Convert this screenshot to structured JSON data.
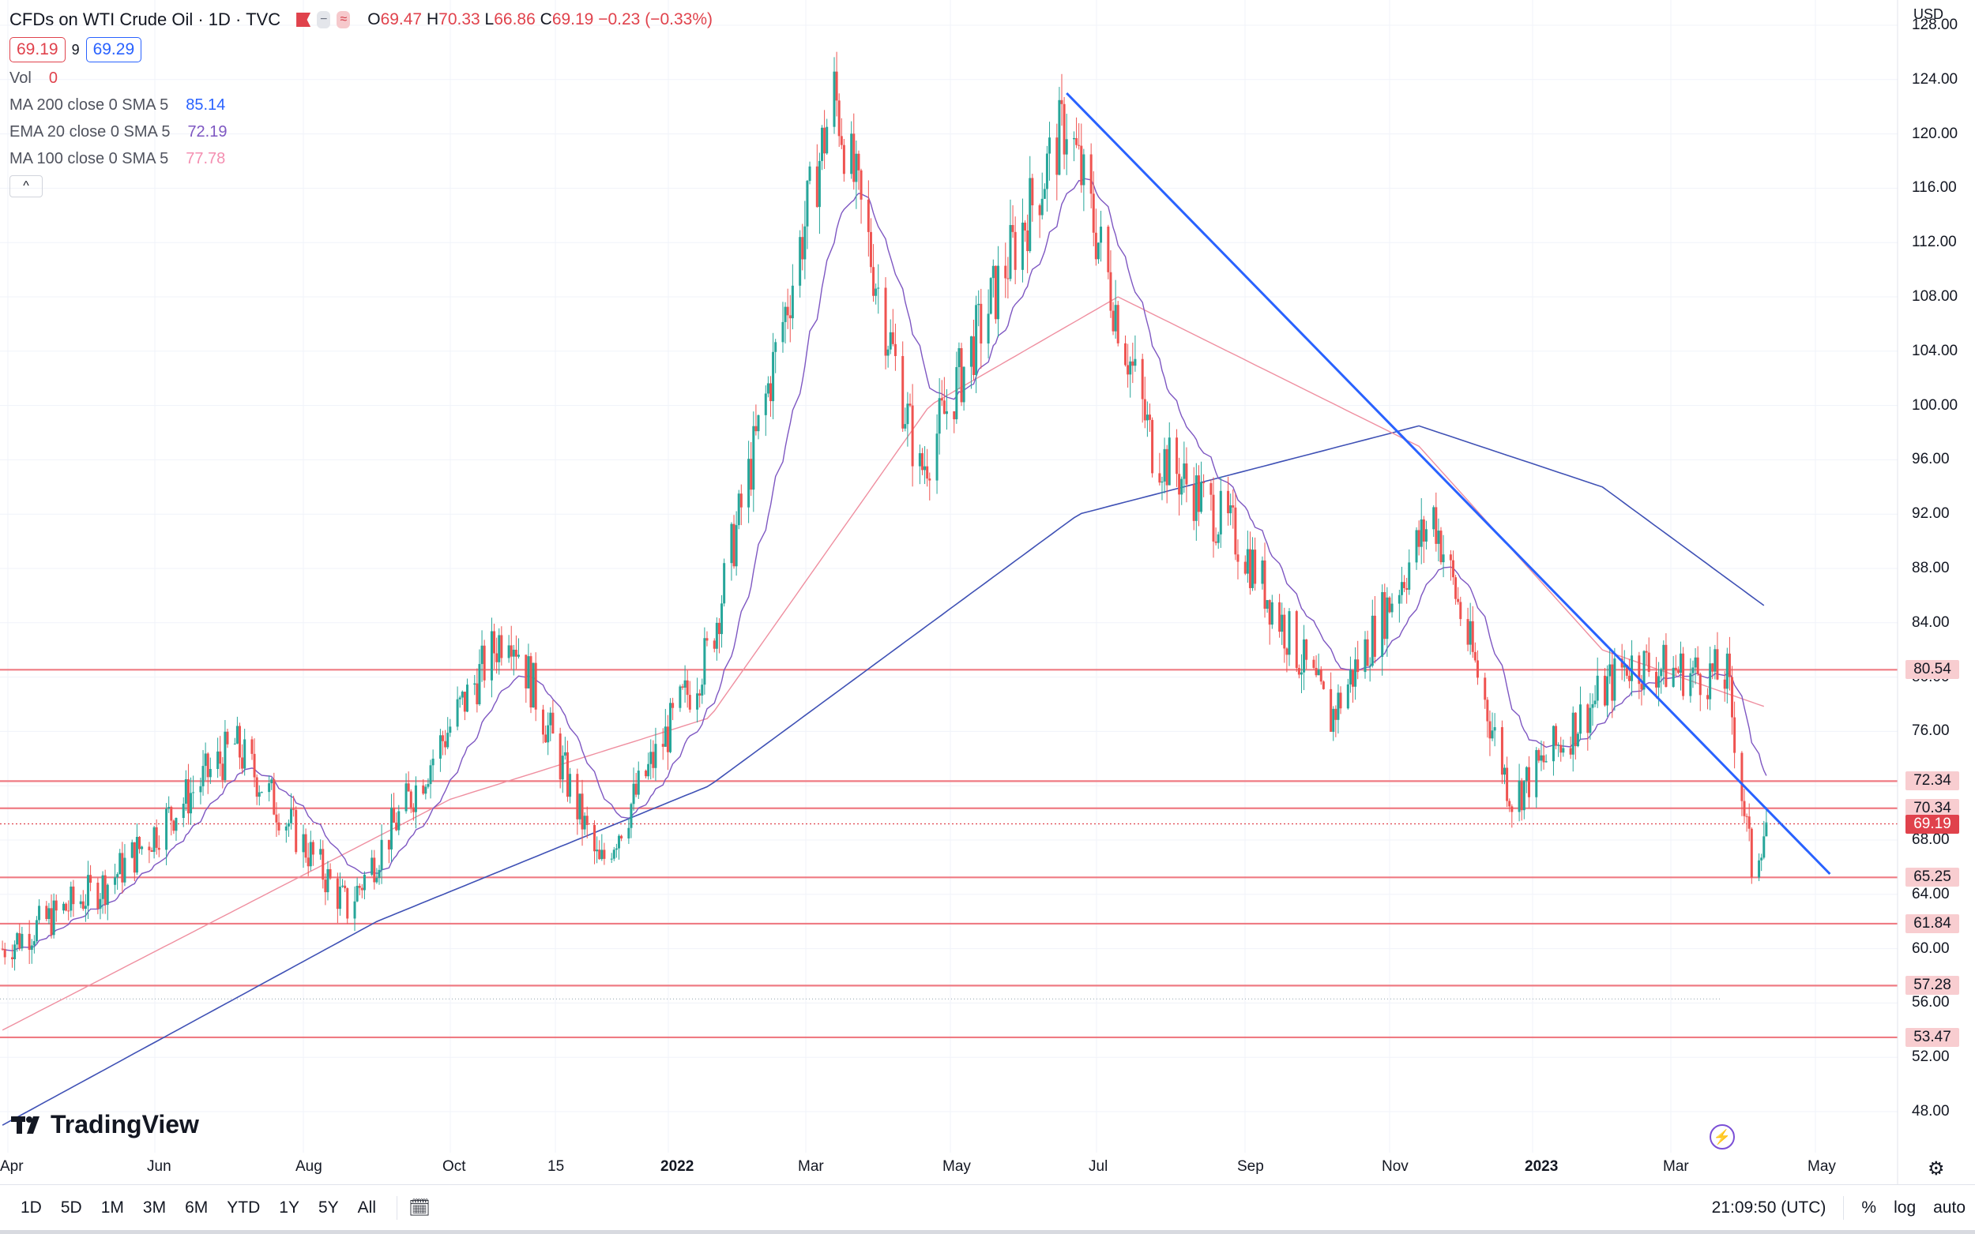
{
  "header": {
    "symbol_title": "CFDs on WTI Crude Oil · 1D · TVC",
    "ohlc": {
      "o_label": "O",
      "o": "69.47",
      "h_label": "H",
      "h": "70.33",
      "l_label": "L",
      "l": "66.86",
      "c_label": "C",
      "c": "69.19",
      "change": "−0.23 (−0.33%)"
    },
    "bid": "69.19",
    "spread": "9",
    "ask": "69.29",
    "vol_label": "Vol",
    "vol_value": "0",
    "indicators": [
      {
        "label": "MA 200 close 0 SMA 5",
        "value": "85.14",
        "color": "#2962ff"
      },
      {
        "label": "EMA 20 close 0 SMA 5",
        "value": "72.19",
        "color": "#7e57c2"
      },
      {
        "label": "MA 100 close 0 SMA 5",
        "value": "77.78",
        "color": "#f48fb1"
      }
    ],
    "collapse_glyph": "^"
  },
  "price_axis": {
    "currency": "USD",
    "ticks": [
      "128.00",
      "124.00",
      "120.00",
      "116.00",
      "112.00",
      "108.00",
      "104.00",
      "100.00",
      "96.00",
      "92.00",
      "88.00",
      "84.00",
      "80.00",
      "76.00",
      "72.00",
      "68.00",
      "64.00",
      "60.00",
      "56.00",
      "52.00",
      "48.00"
    ]
  },
  "time_axis": {
    "labels": [
      "Apr",
      "Jun",
      "Aug",
      "Oct",
      "15",
      "2022",
      "Mar",
      "May",
      "Jul",
      "Sep",
      "Nov",
      "2023",
      "Mar",
      "May"
    ]
  },
  "horizontal_levels": [
    {
      "value": "80.54",
      "style": "red-tag"
    },
    {
      "value": "72.34",
      "style": "red-tag"
    },
    {
      "value": "70.34",
      "style": "red-tag"
    },
    {
      "value": "69.19",
      "style": "last-price"
    },
    {
      "value": "65.25",
      "style": "red-tag"
    },
    {
      "value": "61.84",
      "style": "red-tag"
    },
    {
      "value": "57.28",
      "style": "red-tag"
    },
    {
      "value": "53.47",
      "style": "red-tag"
    }
  ],
  "colors": {
    "up": "#26a69a",
    "down": "#ef5350",
    "trendline": "#2962ff",
    "level": "#ef7b83",
    "ma200": "#3f51b5",
    "ema20": "#7e57c2",
    "ma100": "#ef8fa0"
  },
  "brand": "TradingView",
  "bottom_bar": {
    "timeframes": [
      "1D",
      "5D",
      "1M",
      "3M",
      "6M",
      "YTD",
      "1Y",
      "5Y",
      "All"
    ],
    "clock": "21:09:50 (UTC)",
    "percent": "%",
    "log": "log",
    "auto": "auto"
  },
  "chart_data": {
    "type": "candlestick",
    "ylim": [
      46,
      130
    ],
    "anchors": [
      {
        "date": "2021-04-01",
        "close": 60
      },
      {
        "date": "2021-05-15",
        "close": 65
      },
      {
        "date": "2021-07-05",
        "close": 75
      },
      {
        "date": "2021-08-20",
        "close": 63
      },
      {
        "date": "2021-10-25",
        "close": 84
      },
      {
        "date": "2021-12-01",
        "close": 66
      },
      {
        "date": "2022-01-15",
        "close": 82
      },
      {
        "date": "2022-03-07",
        "close": 123
      },
      {
        "date": "2022-04-11",
        "close": 95
      },
      {
        "date": "2022-06-10",
        "close": 121
      },
      {
        "date": "2022-07-15",
        "close": 97
      },
      {
        "date": "2022-08-20",
        "close": 90
      },
      {
        "date": "2022-09-26",
        "close": 77
      },
      {
        "date": "2022-11-07",
        "close": 92
      },
      {
        "date": "2022-12-09",
        "close": 71
      },
      {
        "date": "2023-01-25",
        "close": 81
      },
      {
        "date": "2023-03-07",
        "close": 80
      },
      {
        "date": "2023-03-17",
        "close": 66
      },
      {
        "date": "2023-03-23",
        "close": 69.19
      }
    ],
    "ma200_points": [
      {
        "date": "2021-04-01",
        "value": 47
      },
      {
        "date": "2021-09-01",
        "value": 62
      },
      {
        "date": "2022-01-15",
        "value": 72
      },
      {
        "date": "2022-06-15",
        "value": 92
      },
      {
        "date": "2022-11-01",
        "value": 98.5
      },
      {
        "date": "2023-01-15",
        "value": 94
      },
      {
        "date": "2023-03-23",
        "value": 85.14
      }
    ],
    "ma100_points": [
      {
        "date": "2021-04-01",
        "value": 54
      },
      {
        "date": "2021-10-01",
        "value": 71
      },
      {
        "date": "2022-01-15",
        "value": 77
      },
      {
        "date": "2022-04-15",
        "value": 100
      },
      {
        "date": "2022-07-01",
        "value": 108
      },
      {
        "date": "2022-11-01",
        "value": 97
      },
      {
        "date": "2023-01-15",
        "value": 82
      },
      {
        "date": "2023-03-23",
        "value": 77.78
      }
    ],
    "ema20_offset_note": "",
    "trendline": {
      "start": {
        "date": "2022-06-10",
        "value": 123
      },
      "end": {
        "date": "2023-04-18",
        "value": 65.5
      }
    }
  }
}
